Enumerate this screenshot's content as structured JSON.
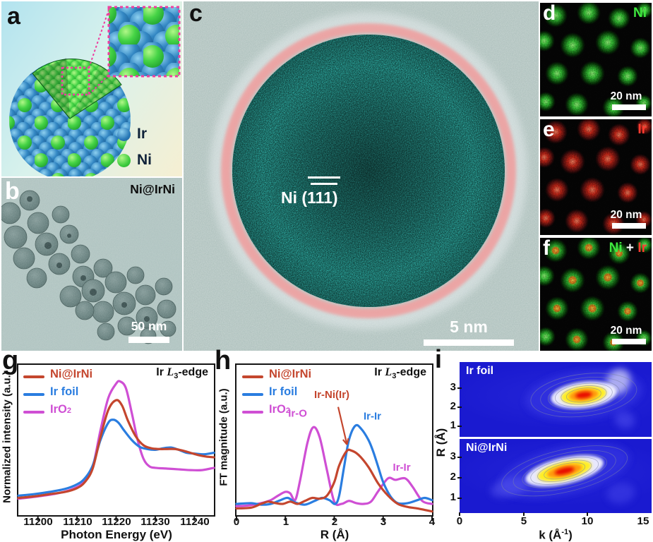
{
  "panels": {
    "a": {
      "label": "a",
      "legend": [
        {
          "element": "Ir"
        },
        {
          "element": "Ni"
        }
      ]
    },
    "b": {
      "label": "b",
      "sample": "Ni@IrNi",
      "scalebar": "50 nm"
    },
    "c": {
      "label": "c",
      "lattice": "Ni (111)",
      "scalebar": "5 nm"
    },
    "d": {
      "label": "d",
      "element": "Ni",
      "scalebar": "20 nm"
    },
    "e": {
      "label": "e",
      "element": "Ir",
      "scalebar": "20 nm"
    },
    "f": {
      "label": "f",
      "el1": "Ni",
      "plus": " + ",
      "el2": "Ir",
      "scalebar": "20 nm"
    },
    "g": {
      "label": "g"
    },
    "h": {
      "label": "h"
    },
    "i": {
      "label": "i"
    }
  },
  "chart_data": [
    {
      "id": "g",
      "type": "line",
      "xlabel": "Photon Energy (eV)",
      "ylabel": "Normalized intensity (a.u.)",
      "xlim": [
        11195,
        11245
      ],
      "ylim": [
        0,
        1
      ],
      "xticks": [
        11200,
        11210,
        11220,
        11230,
        11240
      ],
      "edge": {
        "pre": "Ir ",
        "sym": "L",
        "sub": "3",
        "post": "-edge"
      },
      "legend": [
        {
          "name": "Ni@IrNi",
          "color": "#c4462e"
        },
        {
          "name": "Ir foil",
          "color": "#2a7de0"
        },
        {
          "name": "IrO",
          "sub": "2",
          "color": "#cf4fd4"
        }
      ],
      "series": [
        {
          "name": "IrO2",
          "color": "#cf4fd4",
          "points": [
            [
              11195,
              0.11
            ],
            [
              11200,
              0.125
            ],
            [
              11205,
              0.145
            ],
            [
              11209,
              0.175
            ],
            [
              11212,
              0.225
            ],
            [
              11214,
              0.32
            ],
            [
              11216,
              0.565
            ],
            [
              11218,
              0.78
            ],
            [
              11220,
              0.875
            ],
            [
              11221,
              0.89
            ],
            [
              11222.5,
              0.845
            ],
            [
              11224,
              0.68
            ],
            [
              11225.5,
              0.5
            ],
            [
              11227,
              0.375
            ],
            [
              11228.5,
              0.325
            ],
            [
              11230,
              0.315
            ],
            [
              11233,
              0.31
            ],
            [
              11236,
              0.305
            ],
            [
              11239,
              0.3
            ],
            [
              11242,
              0.3
            ],
            [
              11245,
              0.315
            ]
          ]
        },
        {
          "name": "Ir foil",
          "color": "#2a7de0",
          "points": [
            [
              11195,
              0.13
            ],
            [
              11199,
              0.14
            ],
            [
              11203,
              0.155
            ],
            [
              11207,
              0.175
            ],
            [
              11210,
              0.205
            ],
            [
              11212,
              0.245
            ],
            [
              11214,
              0.33
            ],
            [
              11216,
              0.5
            ],
            [
              11218,
              0.615
            ],
            [
              11219.3,
              0.635
            ],
            [
              11220.6,
              0.615
            ],
            [
              11222,
              0.565
            ],
            [
              11224,
              0.5
            ],
            [
              11226,
              0.455
            ],
            [
              11228,
              0.44
            ],
            [
              11230,
              0.435
            ],
            [
              11232,
              0.445
            ],
            [
              11234,
              0.45
            ],
            [
              11236,
              0.435
            ],
            [
              11238,
              0.415
            ],
            [
              11240,
              0.41
            ],
            [
              11242.5,
              0.405
            ],
            [
              11245,
              0.415
            ]
          ]
        },
        {
          "name": "Ni@IrNi",
          "color": "#c4462e",
          "points": [
            [
              11195,
              0.115
            ],
            [
              11199,
              0.125
            ],
            [
              11203,
              0.14
            ],
            [
              11207,
              0.155
            ],
            [
              11210,
              0.18
            ],
            [
              11212,
              0.22
            ],
            [
              11214,
              0.31
            ],
            [
              11216,
              0.52
            ],
            [
              11218,
              0.7
            ],
            [
              11220,
              0.765
            ],
            [
              11221.5,
              0.73
            ],
            [
              11223,
              0.63
            ],
            [
              11225,
              0.525
            ],
            [
              11227,
              0.465
            ],
            [
              11229,
              0.445
            ],
            [
              11231,
              0.44
            ],
            [
              11233,
              0.44
            ],
            [
              11235,
              0.44
            ],
            [
              11237,
              0.43
            ],
            [
              11239,
              0.415
            ],
            [
              11241,
              0.4
            ],
            [
              11243,
              0.39
            ],
            [
              11245,
              0.385
            ]
          ]
        }
      ],
      "annotations": []
    },
    {
      "id": "h",
      "type": "line",
      "xlabel": "R (Å)",
      "ylabel": "FT magnitude (a.u.)",
      "xlim": [
        0,
        4
      ],
      "ylim": [
        0,
        1
      ],
      "xticks": [
        0,
        1,
        2,
        3,
        4
      ],
      "edge": {
        "pre": "Ir ",
        "sym": "L",
        "sub": "3",
        "post": "-edge"
      },
      "legend": [
        {
          "name": "Ni@IrNi",
          "color": "#c4462e"
        },
        {
          "name": "Ir foil",
          "color": "#2a7de0"
        },
        {
          "name": "IrO",
          "sub": "2",
          "color": "#cf4fd4"
        }
      ],
      "series": [
        {
          "name": "IrO2",
          "color": "#cf4fd4",
          "points": [
            [
              0,
              0.06
            ],
            [
              0.25,
              0.065
            ],
            [
              0.5,
              0.08
            ],
            [
              0.7,
              0.1
            ],
            [
              0.85,
              0.13
            ],
            [
              1.0,
              0.155
            ],
            [
              1.1,
              0.145
            ],
            [
              1.2,
              0.1
            ],
            [
              1.3,
              0.23
            ],
            [
              1.45,
              0.48
            ],
            [
              1.57,
              0.585
            ],
            [
              1.7,
              0.52
            ],
            [
              1.85,
              0.3
            ],
            [
              2.0,
              0.09
            ],
            [
              2.15,
              0.075
            ],
            [
              2.3,
              0.095
            ],
            [
              2.45,
              0.08
            ],
            [
              2.6,
              0.075
            ],
            [
              2.75,
              0.09
            ],
            [
              2.9,
              0.16
            ],
            [
              3.1,
              0.245
            ],
            [
              3.25,
              0.235
            ],
            [
              3.45,
              0.245
            ],
            [
              3.6,
              0.19
            ],
            [
              3.8,
              0.095
            ],
            [
              4.0,
              0.075
            ]
          ]
        },
        {
          "name": "Ir foil",
          "color": "#2a7de0",
          "points": [
            [
              0,
              0.075
            ],
            [
              0.3,
              0.08
            ],
            [
              0.5,
              0.07
            ],
            [
              0.7,
              0.075
            ],
            [
              0.9,
              0.1
            ],
            [
              1.05,
              0.115
            ],
            [
              1.2,
              0.085
            ],
            [
              1.4,
              0.07
            ],
            [
              1.6,
              0.095
            ],
            [
              1.75,
              0.115
            ],
            [
              1.9,
              0.1
            ],
            [
              2.02,
              0.075
            ],
            [
              2.1,
              0.13
            ],
            [
              2.2,
              0.32
            ],
            [
              2.3,
              0.5
            ],
            [
              2.43,
              0.595
            ],
            [
              2.55,
              0.575
            ],
            [
              2.7,
              0.5
            ],
            [
              2.8,
              0.42
            ],
            [
              2.9,
              0.32
            ],
            [
              3.0,
              0.22
            ],
            [
              3.15,
              0.125
            ],
            [
              3.3,
              0.08
            ],
            [
              3.5,
              0.08
            ],
            [
              3.7,
              0.1
            ],
            [
              3.85,
              0.115
            ],
            [
              4.0,
              0.1
            ]
          ]
        },
        {
          "name": "Ni@IrNi",
          "color": "#c4462e",
          "points": [
            [
              0,
              0.045
            ],
            [
              0.3,
              0.05
            ],
            [
              0.5,
              0.075
            ],
            [
              0.65,
              0.09
            ],
            [
              0.8,
              0.08
            ],
            [
              0.95,
              0.075
            ],
            [
              1.1,
              0.09
            ],
            [
              1.25,
              0.075
            ],
            [
              1.4,
              0.095
            ],
            [
              1.55,
              0.115
            ],
            [
              1.7,
              0.11
            ],
            [
              1.85,
              0.13
            ],
            [
              2.0,
              0.22
            ],
            [
              2.1,
              0.33
            ],
            [
              2.25,
              0.425
            ],
            [
              2.35,
              0.43
            ],
            [
              2.5,
              0.4
            ],
            [
              2.7,
              0.32
            ],
            [
              2.9,
              0.21
            ],
            [
              3.1,
              0.13
            ],
            [
              3.3,
              0.075
            ],
            [
              3.5,
              0.055
            ],
            [
              3.7,
              0.045
            ],
            [
              3.85,
              0.035
            ],
            [
              4.0,
              0.025
            ]
          ]
        }
      ],
      "annotations": [
        {
          "text": "Ir-O",
          "color": "#cf4fd4",
          "x": 1.25,
          "y": 0.655
        },
        {
          "text": "Ir-Ni(Ir)",
          "color": "#c4462e",
          "x": 1.95,
          "y": 0.78,
          "arrow": [
            2.08,
            0.72,
            2.26,
            0.47
          ]
        },
        {
          "text": "Ir-Ir",
          "color": "#2a7de0",
          "x": 2.78,
          "y": 0.635
        },
        {
          "text": "Ir-Ir",
          "color": "#cf4fd4",
          "x": 3.38,
          "y": 0.295
        }
      ]
    },
    {
      "id": "i",
      "type": "heatmap",
      "xlabel_parts": {
        "pre": "k (Å",
        "sup": "-1",
        "post": ")"
      },
      "ylabel": "R (Å)",
      "xlim": [
        0,
        15
      ],
      "xticks": [
        0,
        5,
        10,
        15
      ],
      "rticks": [
        "3",
        "2",
        "1"
      ],
      "background": "#1b1bd0",
      "rings": [
        [
          "#f2f2ff",
          1.52,
          0.95
        ],
        [
          "#ffee22",
          1.05,
          1
        ],
        [
          "#ff9911",
          0.68,
          1
        ],
        [
          "#e81000",
          0.38,
          1
        ]
      ],
      "contours": [
        2.45,
        2.0,
        1.65,
        1.32,
        1.05,
        0.8
      ],
      "panels": [
        {
          "name": "Ir foil",
          "rlim": [
            0.41,
            4.33
          ],
          "hotspot": {
            "k": 9.7,
            "R": 2.6,
            "kr": 1.7,
            "rr": 0.45,
            "angle": -7
          },
          "extras": [
            {
              "k": 9.7,
              "R": 2.6,
              "rx": 4.6,
              "ry": 1.25,
              "angle": -7,
              "color": "#3232e0",
              "op": 0.85
            },
            {
              "k": 12.4,
              "R": 3.3,
              "rx": 1.05,
              "ry": 0.6,
              "angle": -55,
              "color": "#cacaf6",
              "op": 0.8
            },
            {
              "k": 12.9,
              "R": 1.3,
              "rx": 0.8,
              "ry": 0.45,
              "angle": 20,
              "color": "#4444e8",
              "op": 0.7
            }
          ]
        },
        {
          "name": "Ni@IrNi",
          "rlim": [
            0.24,
            3.86
          ],
          "hotspot": {
            "k": 8.2,
            "R": 2.3,
            "kr": 2.05,
            "rr": 0.42,
            "angle": -13
          },
          "extras": [
            {
              "k": 8.2,
              "R": 2.3,
              "rx": 5.2,
              "ry": 1.15,
              "angle": -13,
              "color": "#3232e0",
              "op": 0.85
            },
            {
              "k": 3.9,
              "R": 1.5,
              "rx": 1.5,
              "ry": 0.45,
              "angle": -15,
              "color": "#5c5cf0",
              "op": 0.5
            },
            {
              "k": 12.6,
              "R": 1.2,
              "rx": 1.1,
              "ry": 0.5,
              "angle": -10,
              "color": "#4040e6",
              "op": 0.6
            }
          ]
        }
      ]
    }
  ]
}
